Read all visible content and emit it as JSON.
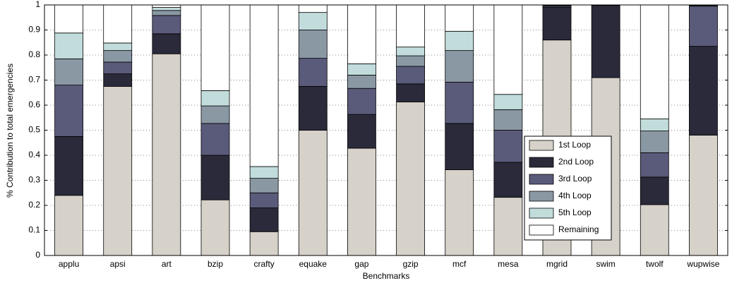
{
  "chart_data": {
    "type": "stacked_bar",
    "xlabel": "Benchmarks",
    "ylabel": "% Contribution to total emergencies",
    "categories": [
      "applu",
      "apsi",
      "art",
      "bzip",
      "crafty",
      "equake",
      "gap",
      "gzip",
      "mcf",
      "mesa",
      "mgrid",
      "swim",
      "twolf",
      "wupwise"
    ],
    "series": [
      {
        "name": "1st Loop",
        "color": "#d6d1c9",
        "values": [
          0.24,
          0.675,
          0.805,
          0.222,
          0.095,
          0.5,
          0.428,
          0.613,
          0.342,
          0.232,
          0.86,
          0.71,
          0.203,
          0.48
        ]
      },
      {
        "name": "2nd Loop",
        "color": "#2a2a3a",
        "values": [
          0.235,
          0.05,
          0.08,
          0.178,
          0.095,
          0.175,
          0.135,
          0.072,
          0.185,
          0.14,
          0.13,
          0.288,
          0.11,
          0.355
        ]
      },
      {
        "name": "3rd Loop",
        "color": "#5a5b7a",
        "values": [
          0.205,
          0.047,
          0.073,
          0.127,
          0.06,
          0.112,
          0.104,
          0.07,
          0.165,
          0.128,
          0.005,
          0.001,
          0.097,
          0.16
        ]
      },
      {
        "name": "4th Loop",
        "color": "#8a98a4",
        "values": [
          0.105,
          0.046,
          0.02,
          0.07,
          0.058,
          0.113,
          0.053,
          0.042,
          0.126,
          0.082,
          0.003,
          0.001,
          0.087,
          0.003
        ]
      },
      {
        "name": "5th Loop",
        "color": "#c2dcdc",
        "values": [
          0.103,
          0.03,
          0.012,
          0.061,
          0.047,
          0.07,
          0.045,
          0.035,
          0.077,
          0.061,
          0.001,
          0,
          0.048,
          0.001
        ]
      },
      {
        "name": "Remaining",
        "color": "#ffffff",
        "values": [
          0.112,
          0.152,
          0.01,
          0.342,
          0.645,
          0.03,
          0.235,
          0.168,
          0.105,
          0.357,
          0.001,
          0,
          0.455,
          0.001
        ]
      }
    ],
    "ylim": [
      0,
      1
    ],
    "yticks": [
      0,
      0.1,
      0.2,
      0.3,
      0.4,
      0.5,
      0.6,
      0.7,
      0.8,
      0.9,
      1
    ],
    "grid": true,
    "legend": "lower right"
  }
}
